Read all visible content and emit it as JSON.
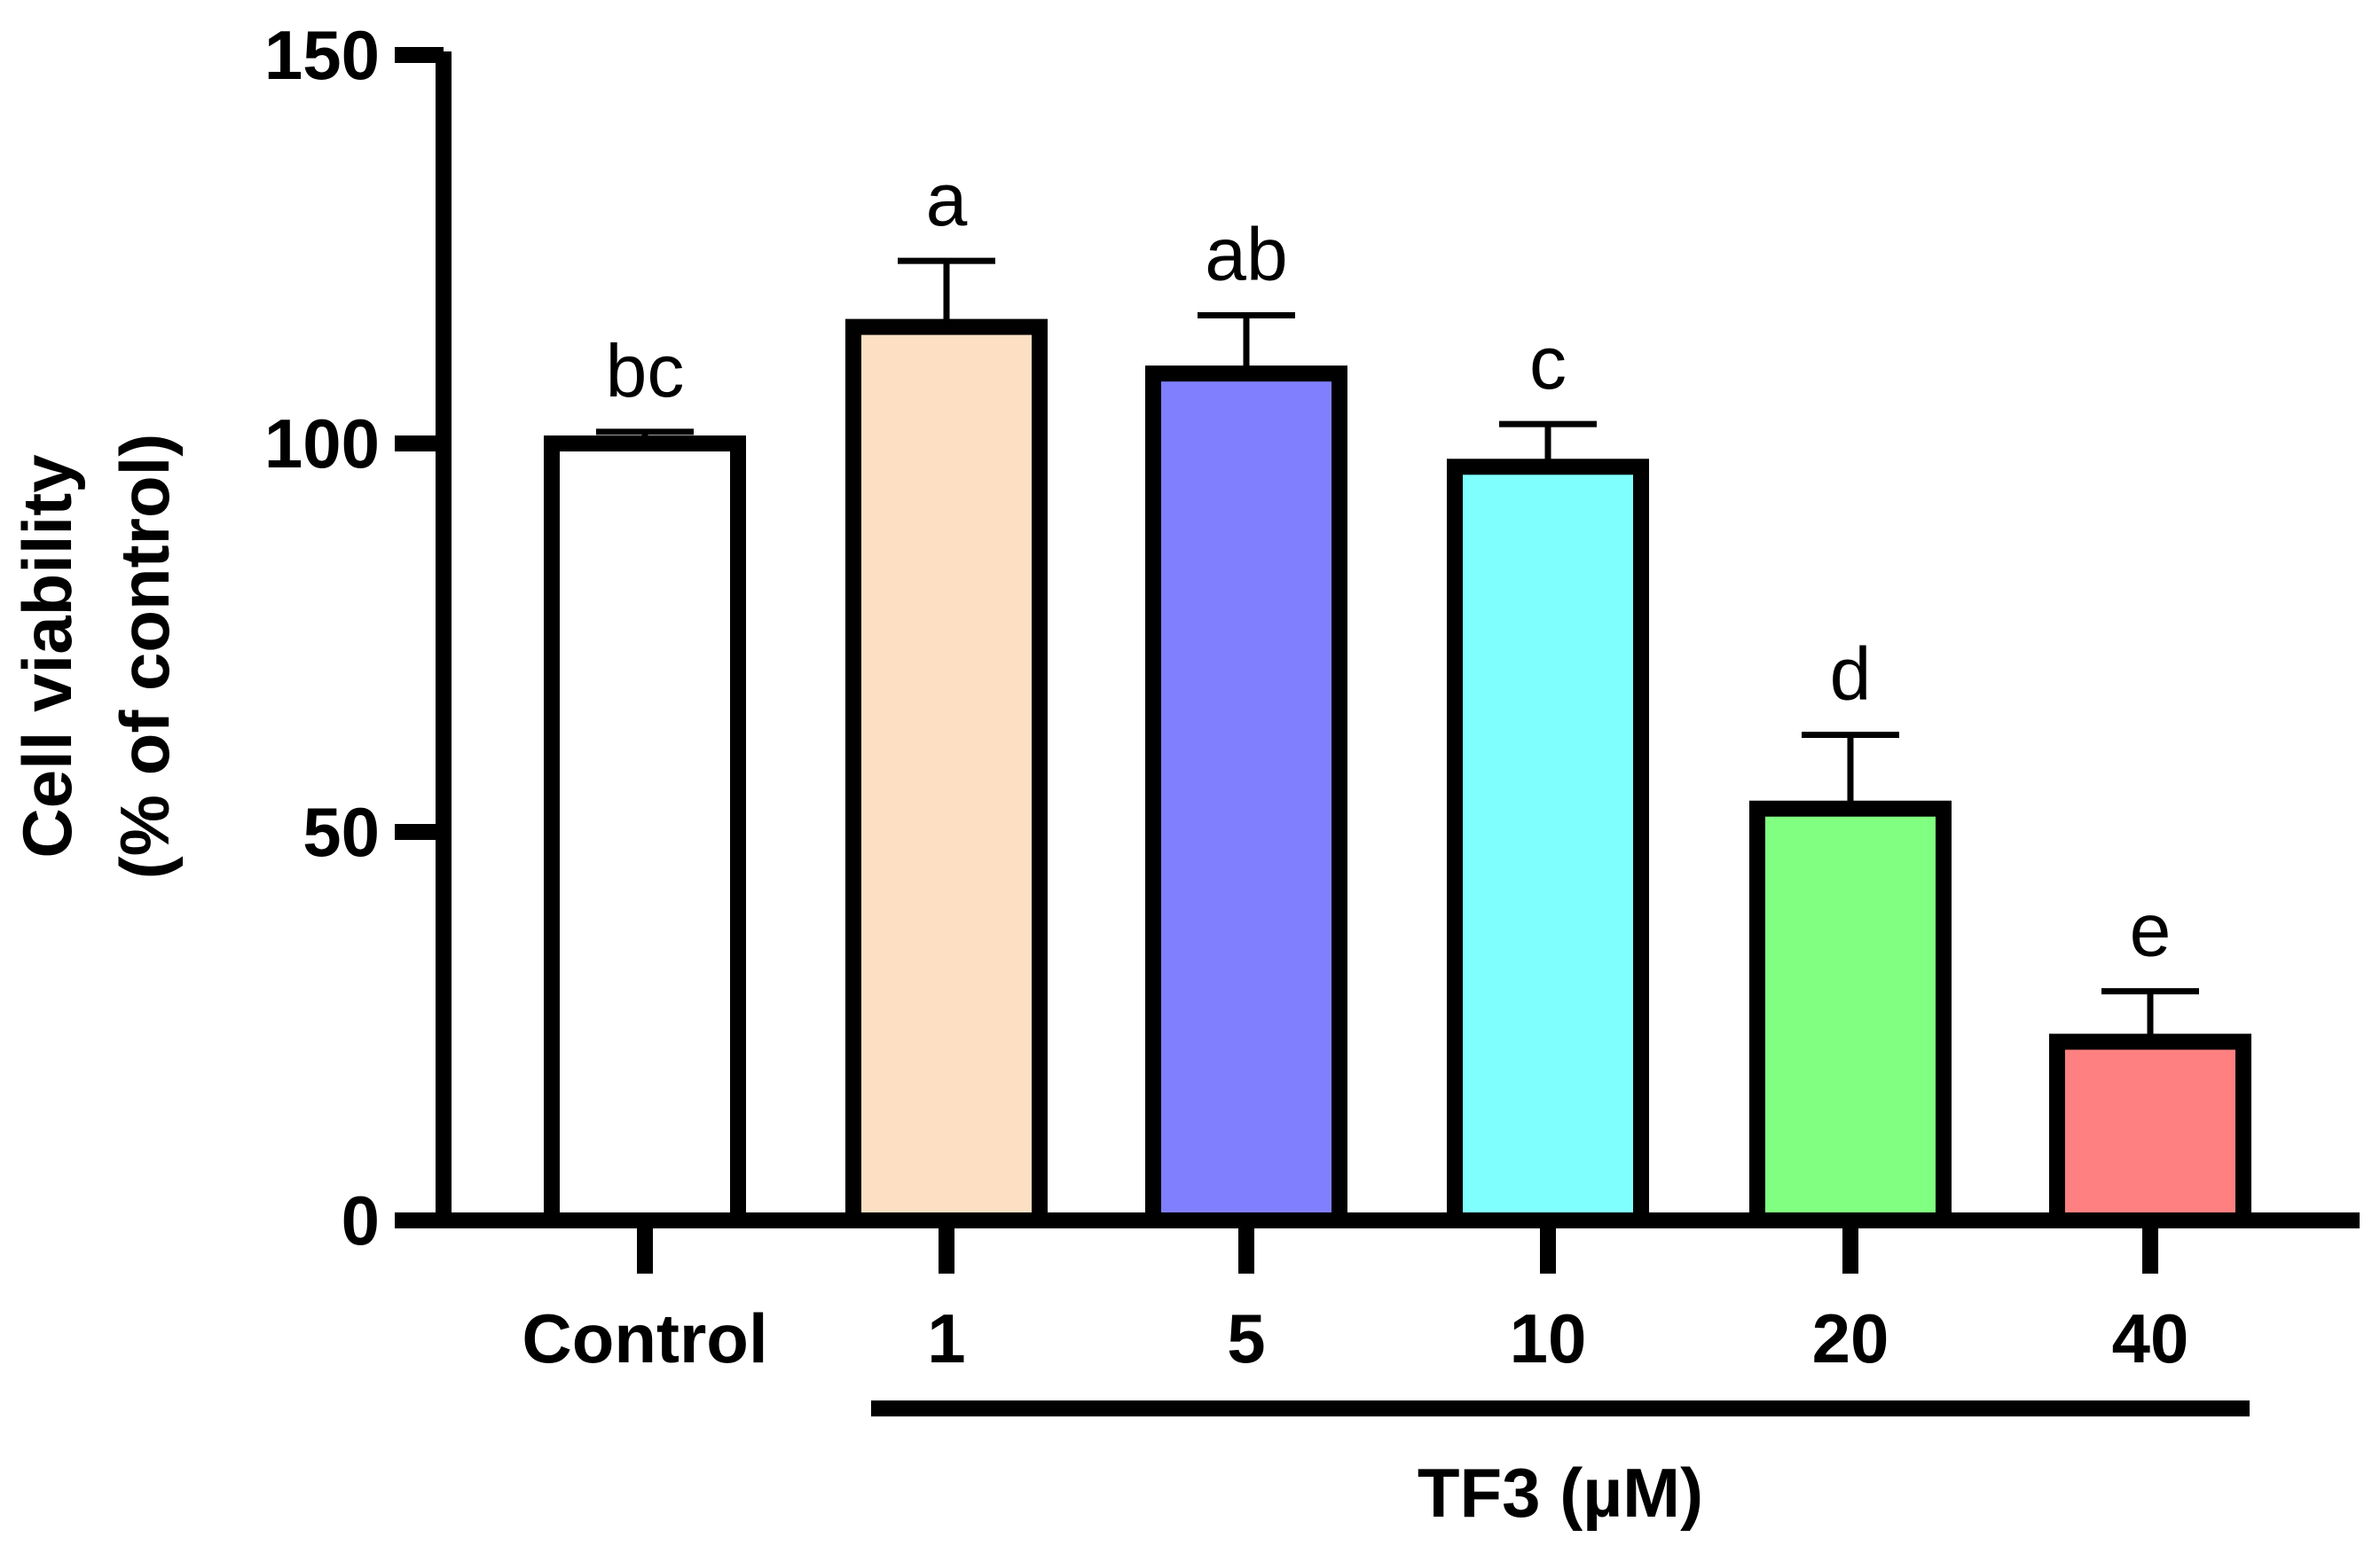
{
  "chart_data": {
    "type": "bar",
    "categories": [
      "Control",
      "1",
      "5",
      "10",
      "20",
      "40"
    ],
    "values": [
      100,
      115,
      109,
      97,
      53,
      23
    ],
    "errors": [
      1.5,
      8.5,
      7.5,
      5.5,
      9.5,
      6.5
    ],
    "significance_labels": [
      "bc",
      "a",
      "ab",
      "c",
      "d",
      "e"
    ],
    "colors": [
      "#ffffff",
      "#fde0c3",
      "#8080ff",
      "#80ffff",
      "#80ff80",
      "#ff8080"
    ],
    "ylabel_line1": "Cell viability",
    "ylabel_line2": "(% of control)",
    "group_label": "TF3 (µM)",
    "ylim": [
      0,
      150
    ],
    "yticks": [
      "0",
      "50",
      "100",
      "150"
    ],
    "ytick_values": [
      0,
      50,
      100,
      150
    ]
  }
}
